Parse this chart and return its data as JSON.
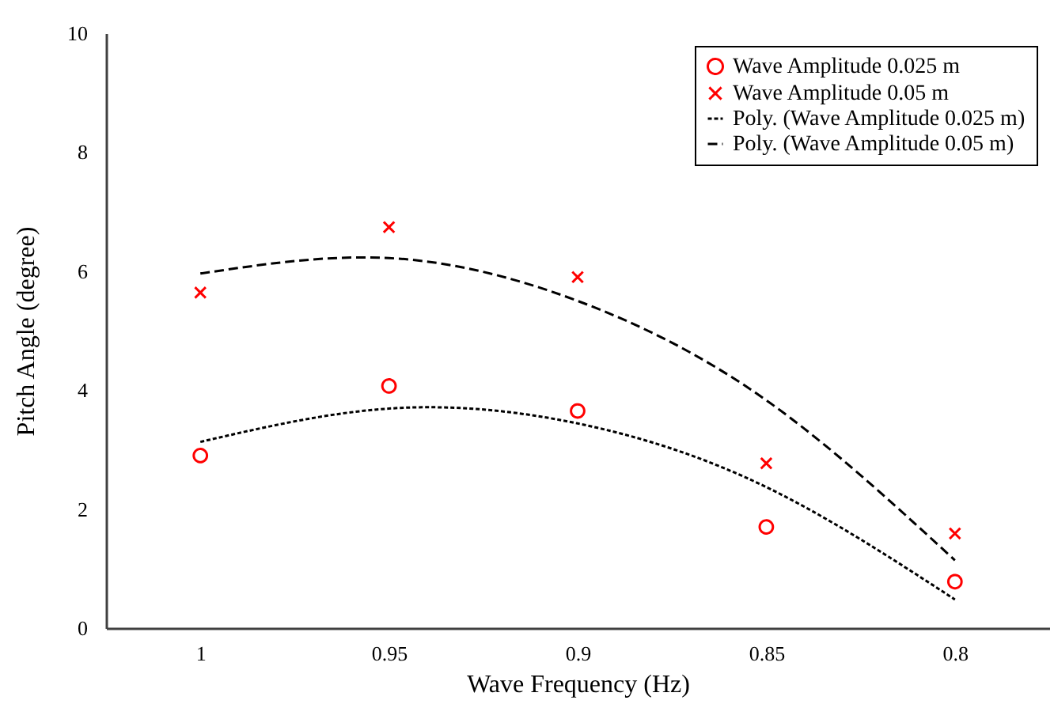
{
  "chart_data": {
    "type": "scatter",
    "xlabel": "Wave Frequency (Hz)",
    "ylabel": "Pitch Angle (degree)",
    "categories": [
      "1",
      "0.95",
      "0.9",
      "0.85",
      "0.8"
    ],
    "ylim": [
      0,
      10
    ],
    "yticks": [
      0,
      2,
      4,
      6,
      8,
      10
    ],
    "grid": false,
    "legend": "top right",
    "series": [
      {
        "name": "Wave Amplitude 0.025 m",
        "marker": "circle",
        "color": "#ff0000",
        "values": [
          2.9,
          4.07,
          3.65,
          1.7,
          0.78
        ]
      },
      {
        "name": "Wave Amplitude 0.05 m",
        "marker": "cross",
        "color": "#ff0000",
        "values": [
          5.64,
          6.74,
          5.9,
          2.77,
          1.59
        ]
      },
      {
        "name": "Poly. (Wave Amplitude 0.025 m)",
        "type": "line",
        "line_style": "dotted",
        "color": "#000000",
        "values": [
          3.13,
          3.69,
          3.44,
          2.37,
          0.48
        ]
      },
      {
        "name": "Poly. (Wave Amplitude 0.05 m)",
        "type": "line",
        "line_style": "dashed",
        "color": "#000000",
        "values": [
          5.96,
          6.22,
          5.5,
          3.83,
          1.14
        ]
      }
    ]
  }
}
